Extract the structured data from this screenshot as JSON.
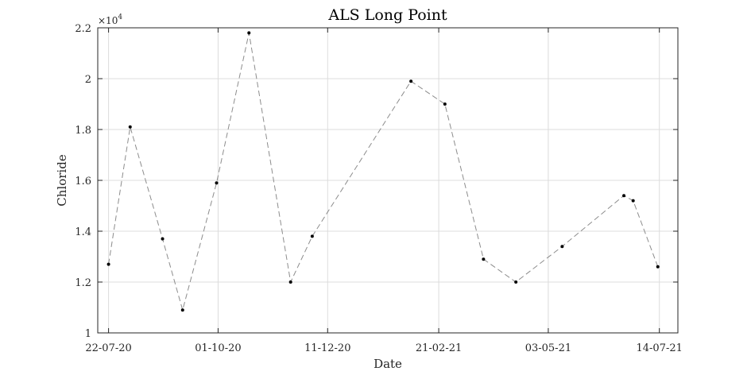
{
  "chart_data": {
    "type": "line",
    "title": "ALS Long Point",
    "xlabel": "Date",
    "ylabel": "Chloride",
    "y_exponent_base": "×10",
    "y_exponent_power": "4",
    "ylim": [
      1,
      2.2
    ],
    "y_ticks": [
      1,
      1.2,
      1.4,
      1.6,
      1.8,
      2,
      2.2
    ],
    "y_tick_labels": [
      "1",
      "1.2",
      "1.4",
      "1.6",
      "1.8",
      "2",
      "2.2"
    ],
    "xlim": [
      -7.0,
      369.0
    ],
    "x_units": "days since 22-07-20",
    "x_ticks": [
      0,
      71,
      142,
      214,
      285,
      357
    ],
    "x_tick_labels": [
      "22-07-20",
      "01-10-20",
      "11-12-20",
      "21-02-21",
      "03-05-21",
      "14-07-21"
    ],
    "grid": true,
    "series": [
      {
        "name": "Chloride",
        "line_style": "dashed",
        "line_color": "#8c8c8c",
        "marker_color": "#000000",
        "x": [
          0,
          14,
          35,
          48,
          70,
          91,
          118,
          132,
          196,
          218,
          243,
          264,
          294,
          334,
          340,
          356
        ],
        "y": [
          1.27,
          1.81,
          1.37,
          1.09,
          1.59,
          2.18,
          1.2,
          1.38,
          1.99,
          1.9,
          1.29,
          1.2,
          1.34,
          1.54,
          1.52,
          1.26
        ]
      }
    ]
  }
}
